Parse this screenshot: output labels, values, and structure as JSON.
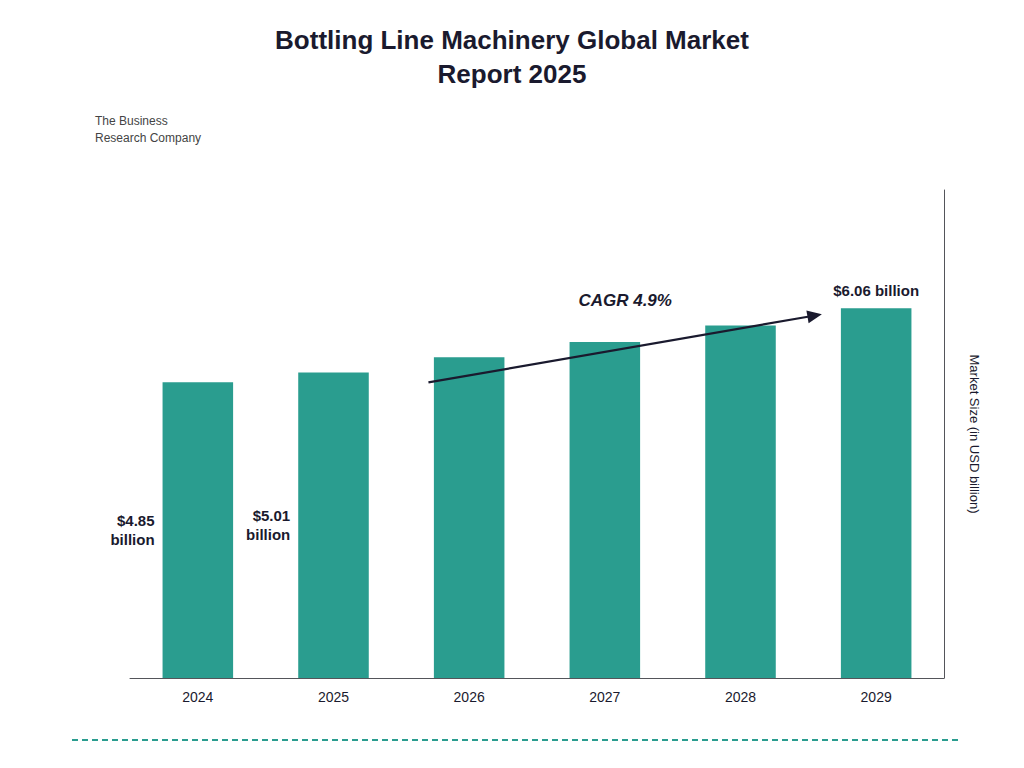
{
  "chart_data": {
    "type": "bar",
    "title": "Bottling Line Machinery Global Market\nReport 2025",
    "categories": [
      "2024",
      "2025",
      "2026",
      "2027",
      "2028",
      "2029"
    ],
    "values": [
      4.85,
      5.01,
      5.26,
      5.51,
      5.78,
      6.06
    ],
    "color": "#2a9d8f",
    "ylabel": "Market Size (in USD billion)",
    "ylim": [
      0,
      8.0
    ],
    "grid": false,
    "tick_labels": "x",
    "data_labels": true,
    "value_labels": [
      "$4.85\nbillion",
      "$5.01\nbillion",
      null,
      null,
      null,
      "$6.06 billion"
    ],
    "annotations": [
      "CAGR 4.9%",
      "The Business\nResearch Company"
    ]
  }
}
